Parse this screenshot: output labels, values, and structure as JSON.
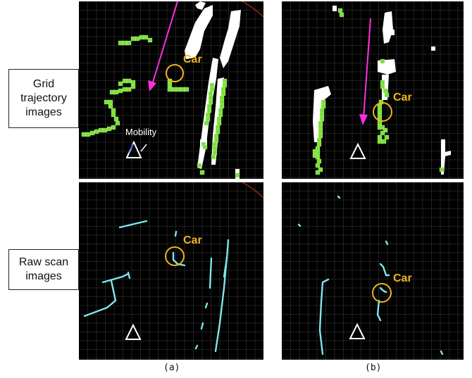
{
  "row_labels": {
    "grid": "Grid\ntrajectory\nimages",
    "raw": "Raw scan\nimages"
  },
  "annotations": {
    "car": "Car",
    "mobility": "Mobility"
  },
  "captions": {
    "a": "(a)",
    "b": "(b)"
  },
  "colors": {
    "background": "#000000",
    "grid_lines": "#2b2b2b",
    "occupied": "#ffffff",
    "trajectory": "#7be03a",
    "scan_points": "#7fe6ec",
    "car_marker": "#f0b51a",
    "motion_arrow": "#ff2fe0",
    "mobility_marker": "#ffffff"
  },
  "icons": {
    "mobility_marker": "triangle-outline-icon",
    "car_marker": "circle-outline-icon",
    "motion_arrow": "arrow-icon"
  }
}
